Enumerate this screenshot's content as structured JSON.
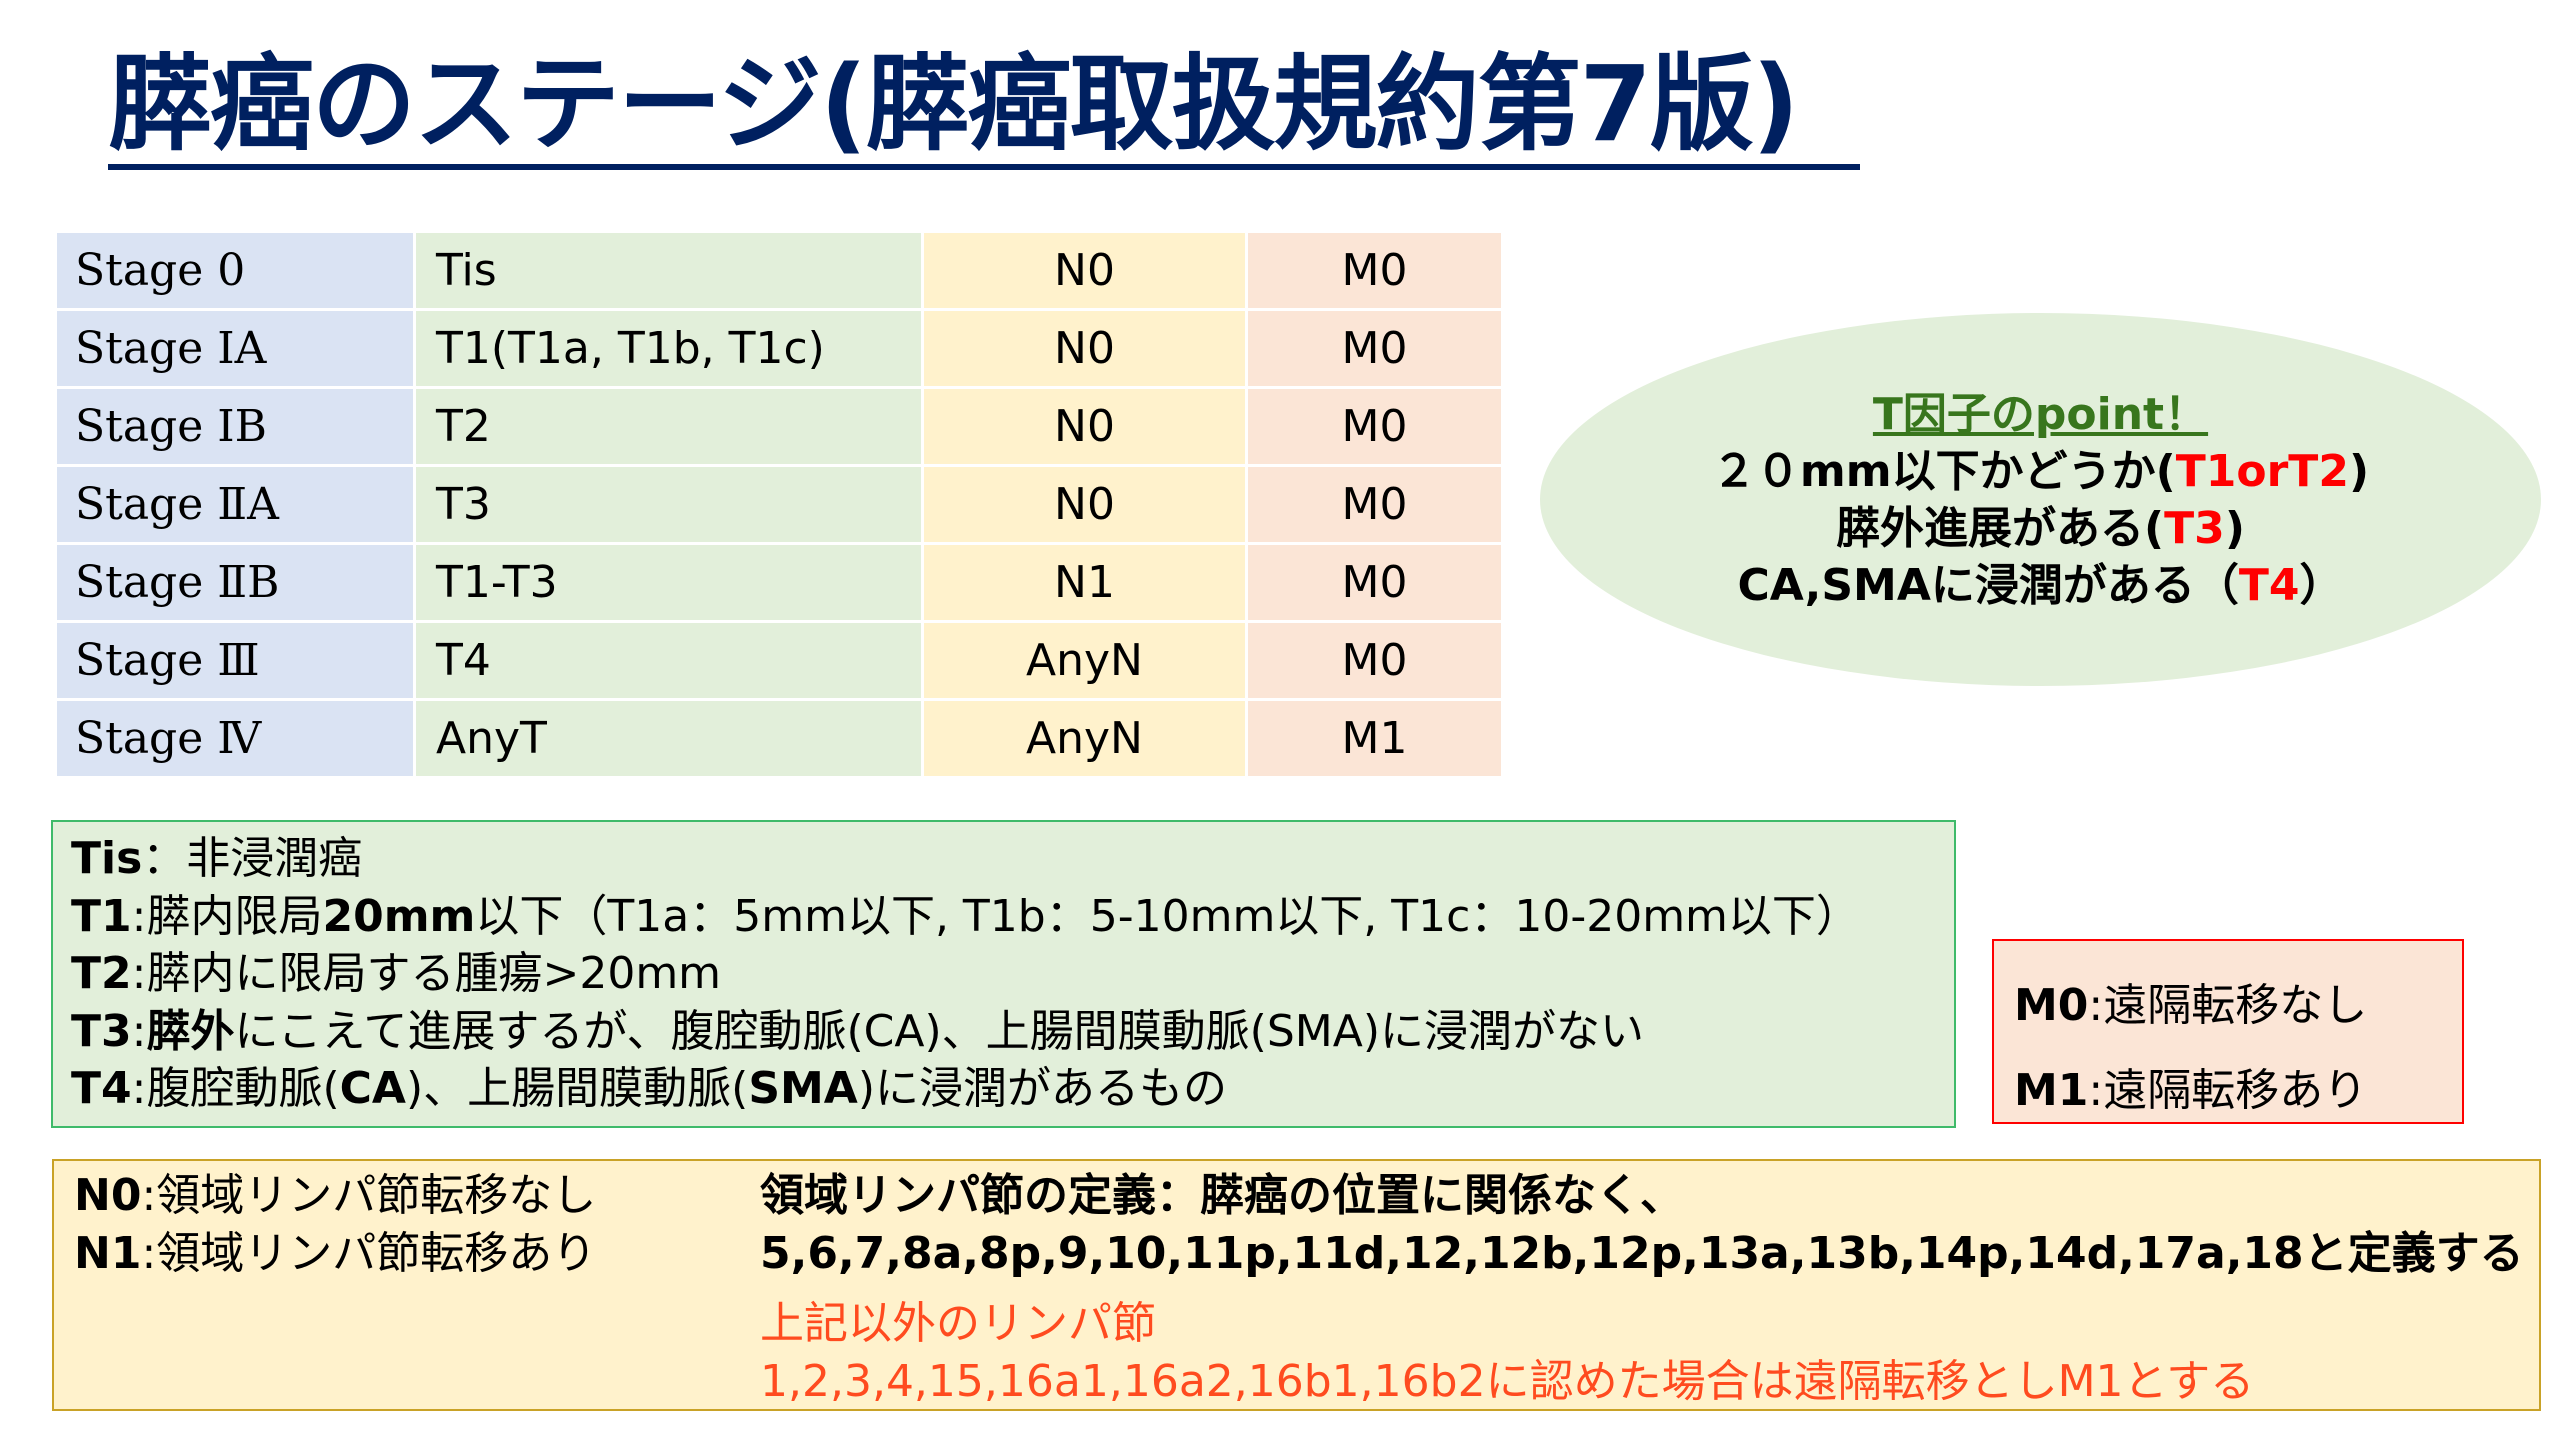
{
  "title": "膵癌のステージ(膵癌取扱規約第7版)",
  "table": {
    "rows": [
      [
        "Stage 0",
        "Tis",
        "N0",
        "M0"
      ],
      [
        "Stage ⅠA",
        "T1(T1a, T1b, T1c)",
        "N0",
        "M0"
      ],
      [
        "Stage ⅠB",
        "T2",
        "N0",
        "M0"
      ],
      [
        "Stage ⅡA",
        "T3",
        "N0",
        "M0"
      ],
      [
        "Stage ⅡB",
        "T1-T3",
        "N1",
        "M0"
      ],
      [
        "Stage Ⅲ",
        "T4",
        "AnyN",
        "M0"
      ],
      [
        "Stage Ⅳ",
        "AnyT",
        "AnyN",
        "M1"
      ]
    ],
    "colors": [
      "#dae3f3",
      "#e2efda",
      "#fff2cc",
      "#fbe5d6"
    ]
  },
  "point": {
    "heading": "T因子のpoint！",
    "l1a": "２０mm以下かどうか(",
    "l1b": "T1orT2",
    "l1c": ")",
    "l2a": "膵外進展がある(",
    "l2b": "T3",
    "l2c": ")",
    "l3a": "CA,SMAに浸潤がある（",
    "l3b": "T4",
    "l3c": "）"
  },
  "t_defs": {
    "tis_k": "Tis",
    "tis_v": "：非浸潤癌",
    "t1_k": "T1",
    "t1_a": ":膵内限局",
    "t1_b": "20mm",
    "t1_c": "以下（T1a：5mm以下, T1b：5-10mm以下, T1c：10-20mm以下）",
    "t2_k": "T2",
    "t2_v": ":膵内に限局する腫瘍>20mm",
    "t3_k": "T3",
    "t3_a": ":",
    "t3_b": "膵外",
    "t3_c": "にこえて進展するが、腹腔動脈(CA)、上腸間膜動脈(SMA)に浸潤がない",
    "t4_k": "T4",
    "t4_a": ":腹腔動脈(",
    "t4_b": "CA",
    "t4_c": ")、上腸間膜動脈(",
    "t4_d": "SMA",
    "t4_e": ")に浸潤があるもの"
  },
  "m_defs": {
    "m0_k": "M0",
    "m0_v": ":遠隔転移なし",
    "m1_k": "M1",
    "m1_v": ":遠隔転移あり"
  },
  "n_defs": {
    "n0_k": "N0",
    "n0_v": ":領域リンパ節転移なし",
    "n1_k": "N1",
    "n1_v": ":領域リンパ節転移あり",
    "def1": "領域リンパ節の定義：膵癌の位置に関係なく、",
    "def2": "5,6,7,8a,8p,9,10,11p,11d,12,12b,12p,13a,13b,14p,14d,17a,18と定義する",
    "other1": "上記以外のリンパ節",
    "other2": "1,2,3,4,15,16a1,16a2,16b1,16b2に認めた場合は遠隔転移としM1とする"
  },
  "colors": {
    "title": "#002060",
    "accent_red": "#ff0000",
    "orange_red": "#ff4b1f"
  }
}
